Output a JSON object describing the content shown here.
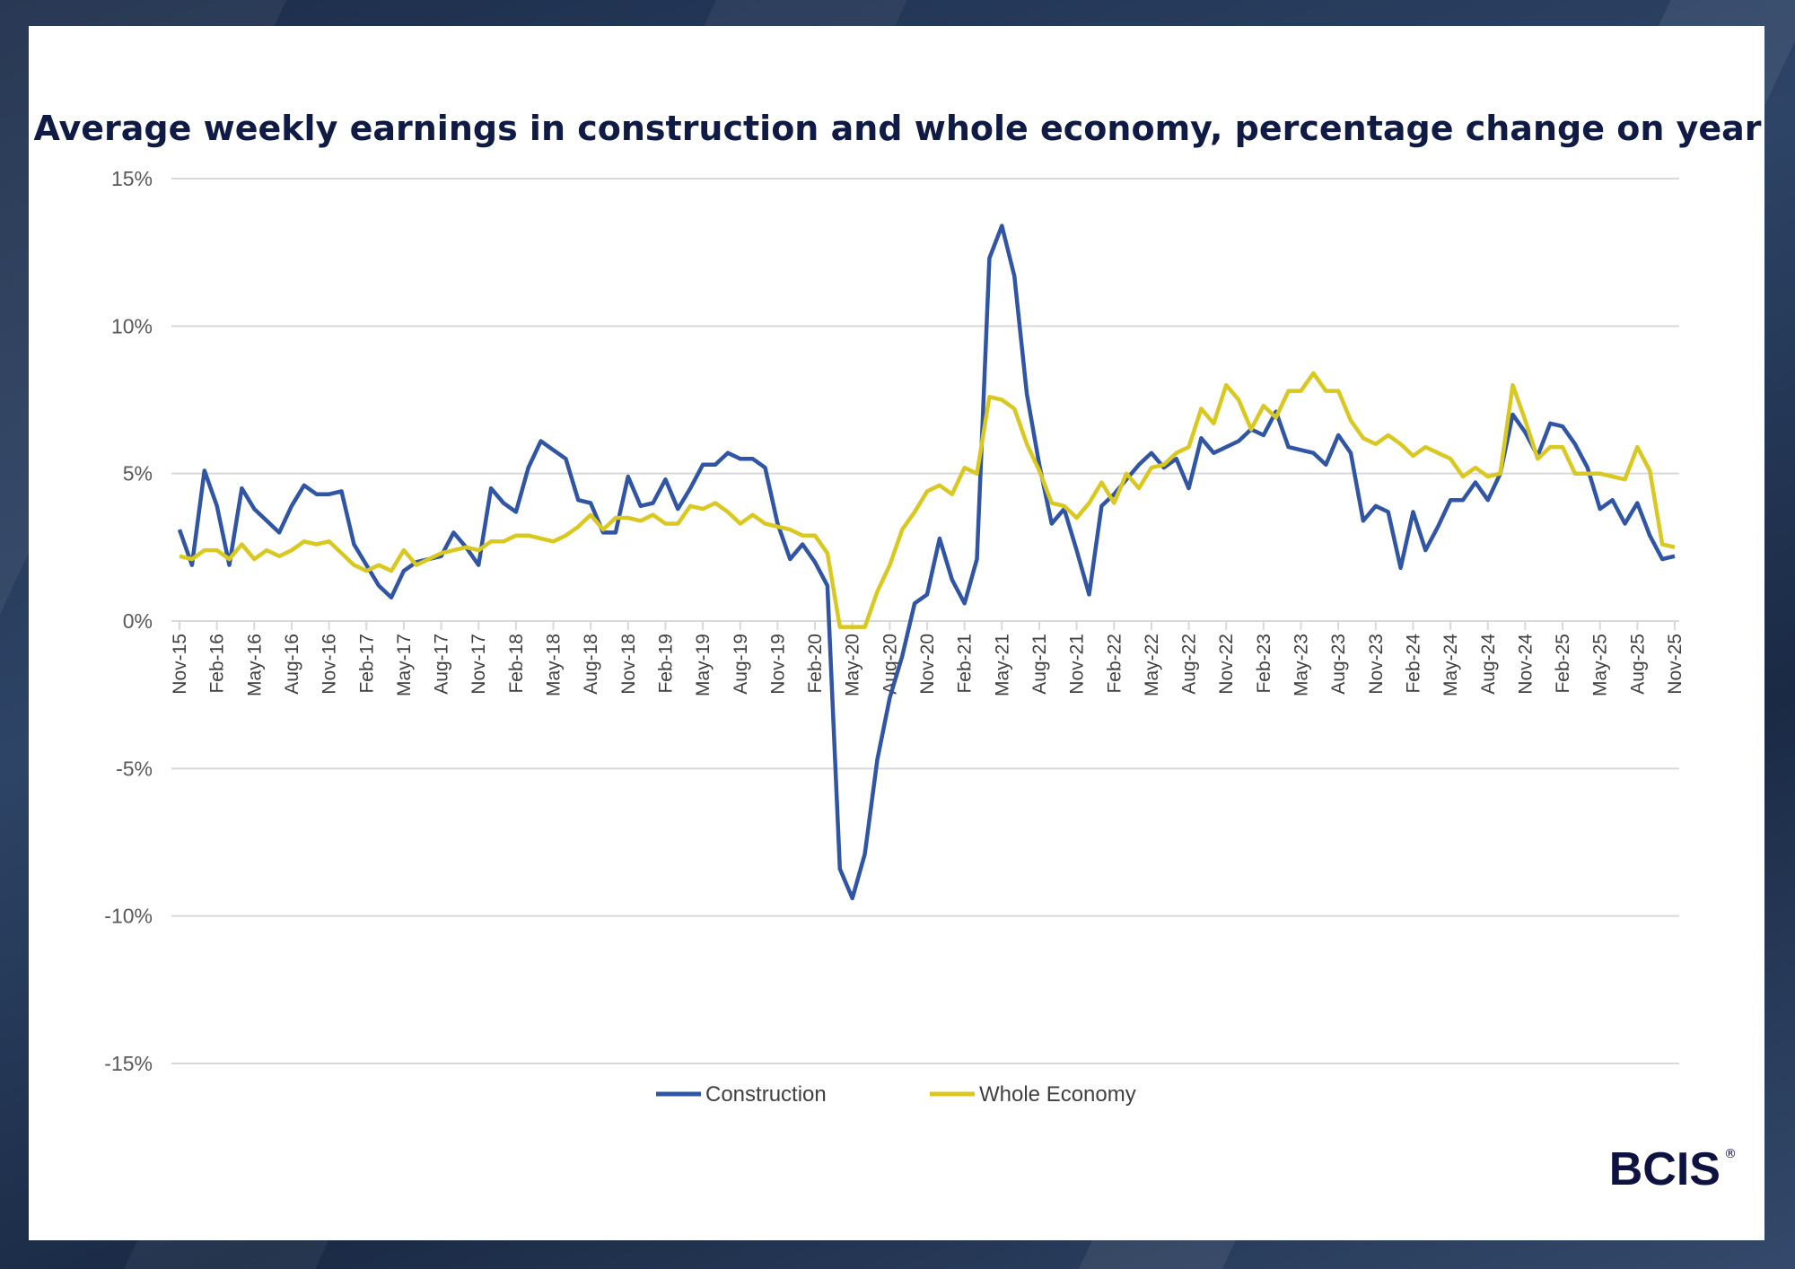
{
  "chart_data": {
    "type": "line",
    "title": "Average weekly earnings in construction and whole economy, percentage change on year",
    "xlabel": "",
    "ylabel": "",
    "ylim": [
      -15,
      15
    ],
    "yticks": [
      15,
      10,
      5,
      0,
      -5,
      -10,
      -15
    ],
    "ytick_labels": [
      "15%",
      "10%",
      "5%",
      "0%",
      "-5%",
      "-10%",
      "-15%"
    ],
    "grid": true,
    "legend_position": "bottom",
    "x_start": "Nov-15",
    "x_end": "Nov-25",
    "x_tick_labels": [
      "Nov-15",
      "Feb-16",
      "May-16",
      "Aug-16",
      "Nov-16",
      "Feb-17",
      "May-17",
      "Aug-17",
      "Nov-17",
      "Feb-18",
      "May-18",
      "Aug-18",
      "Nov-18",
      "Feb-19",
      "May-19",
      "Aug-19",
      "Nov-19",
      "Feb-20",
      "May-20",
      "Aug-20",
      "Nov-20",
      "Feb-21",
      "May-21",
      "Aug-21",
      "Nov-21",
      "Feb-22",
      "May-22",
      "Aug-22",
      "Nov-22",
      "Feb-23",
      "May-23",
      "Aug-23",
      "Nov-23",
      "Feb-24",
      "May-24",
      "Aug-24",
      "Nov-24",
      "Feb-25",
      "May-25",
      "Aug-25",
      "Nov-25"
    ],
    "series": [
      {
        "name": "Construction",
        "color": "#2f55a4",
        "values": [
          3.1,
          1.9,
          5.1,
          3.9,
          1.9,
          4.5,
          3.8,
          3.4,
          3.0,
          3.9,
          4.6,
          4.3,
          4.3,
          4.4,
          2.6,
          1.9,
          1.2,
          0.8,
          1.7,
          2.0,
          2.1,
          2.2,
          3.0,
          2.5,
          1.9,
          4.5,
          4.0,
          3.7,
          5.2,
          6.1,
          5.8,
          5.5,
          4.1,
          4.0,
          3.0,
          3.0,
          4.9,
          3.9,
          4.0,
          4.8,
          3.8,
          4.5,
          5.3,
          5.3,
          5.7,
          5.5,
          5.5,
          5.2,
          3.3,
          2.1,
          2.6,
          2.0,
          1.2,
          -8.4,
          -9.4,
          -7.9,
          -4.7,
          -2.6,
          -1.2,
          0.6,
          0.9,
          2.8,
          1.4,
          0.6,
          2.1,
          12.3,
          13.4,
          11.7,
          7.7,
          5.3,
          3.3,
          3.8,
          2.4,
          0.9,
          3.9,
          4.3,
          4.8,
          5.3,
          5.7,
          5.2,
          5.5,
          4.5,
          6.2,
          5.7,
          5.9,
          6.1,
          6.5,
          6.3,
          7.1,
          5.9,
          5.8,
          5.7,
          5.3,
          6.3,
          5.7,
          3.4,
          3.9,
          3.7,
          1.8,
          3.7,
          2.4,
          3.2,
          4.1,
          4.1,
          4.7,
          4.1,
          5.0,
          7.0,
          6.4,
          5.6,
          6.7,
          6.6,
          6.0,
          5.2,
          3.8,
          4.1,
          3.3,
          4.0,
          2.9,
          2.1,
          2.2
        ]
      },
      {
        "name": "Whole Economy",
        "color": "#d9c820",
        "values": [
          2.2,
          2.1,
          2.4,
          2.4,
          2.1,
          2.6,
          2.1,
          2.4,
          2.2,
          2.4,
          2.7,
          2.6,
          2.7,
          2.3,
          1.9,
          1.7,
          1.9,
          1.7,
          2.4,
          1.9,
          2.1,
          2.3,
          2.4,
          2.5,
          2.4,
          2.7,
          2.7,
          2.9,
          2.9,
          2.8,
          2.7,
          2.9,
          3.2,
          3.6,
          3.1,
          3.5,
          3.5,
          3.4,
          3.6,
          3.3,
          3.3,
          3.9,
          3.8,
          4.0,
          3.7,
          3.3,
          3.6,
          3.3,
          3.2,
          3.1,
          2.9,
          2.9,
          2.3,
          -0.2,
          -0.2,
          -0.2,
          1.0,
          1.9,
          3.1,
          3.7,
          4.4,
          4.6,
          4.3,
          5.2,
          5.0,
          7.6,
          7.5,
          7.2,
          6.0,
          5.1,
          4.0,
          3.9,
          3.5,
          4.0,
          4.7,
          4.0,
          5.0,
          4.5,
          5.2,
          5.3,
          5.7,
          5.9,
          7.2,
          6.7,
          8.0,
          7.5,
          6.5,
          7.3,
          6.9,
          7.8,
          7.8,
          8.4,
          7.8,
          7.8,
          6.8,
          6.2,
          6.0,
          6.3,
          6.0,
          5.6,
          5.9,
          5.7,
          5.5,
          4.9,
          5.2,
          4.9,
          5.0,
          8.0,
          6.8,
          5.5,
          5.9,
          5.9,
          5.0,
          5.0,
          5.0,
          4.9,
          4.8,
          5.9,
          5.1,
          2.6,
          2.5
        ]
      }
    ]
  },
  "logo": {
    "text": "BCIS",
    "mark": "®"
  }
}
